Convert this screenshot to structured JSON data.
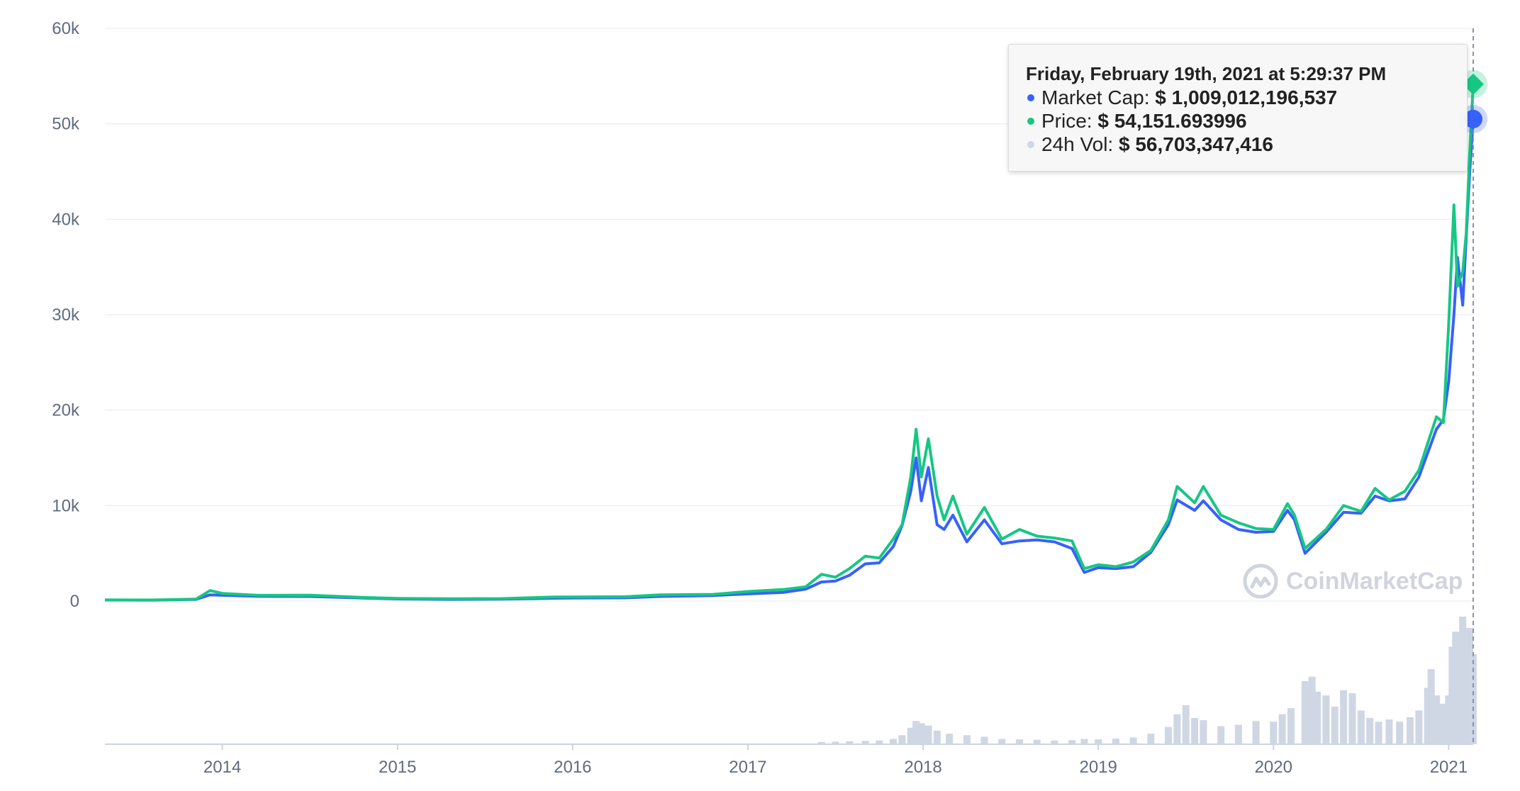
{
  "chart_data": {
    "type": "line",
    "title": "",
    "xlabel": "",
    "ylabel": "",
    "ylim": [
      0,
      60000
    ],
    "y_ticks": [
      "0",
      "10k",
      "20k",
      "30k",
      "40k",
      "50k",
      "60k"
    ],
    "x_ticks": [
      "2014",
      "2015",
      "2016",
      "2017",
      "2018",
      "2019",
      "2020",
      "2021"
    ],
    "grid": true,
    "x_start": 2013.33,
    "x_end": 2021.14,
    "series": [
      {
        "name": "Market Cap",
        "color": "#3861fb",
        "points": [
          [
            2013.33,
            110
          ],
          [
            2013.6,
            100
          ],
          [
            2013.85,
            180
          ],
          [
            2013.93,
            650
          ],
          [
            2014.0,
            600
          ],
          [
            2014.2,
            500
          ],
          [
            2014.5,
            480
          ],
          [
            2014.8,
            320
          ],
          [
            2015.0,
            220
          ],
          [
            2015.3,
            180
          ],
          [
            2015.6,
            210
          ],
          [
            2015.9,
            300
          ],
          [
            2016.0,
            320
          ],
          [
            2016.3,
            340
          ],
          [
            2016.5,
            480
          ],
          [
            2016.8,
            580
          ],
          [
            2017.0,
            750
          ],
          [
            2017.2,
            900
          ],
          [
            2017.33,
            1250
          ],
          [
            2017.42,
            2000
          ],
          [
            2017.5,
            2100
          ],
          [
            2017.58,
            2700
          ],
          [
            2017.67,
            3900
          ],
          [
            2017.75,
            4000
          ],
          [
            2017.83,
            5700
          ],
          [
            2017.88,
            7900
          ],
          [
            2017.93,
            11500
          ],
          [
            2017.96,
            15000
          ],
          [
            2017.99,
            10500
          ],
          [
            2018.03,
            14000
          ],
          [
            2018.08,
            8000
          ],
          [
            2018.12,
            7500
          ],
          [
            2018.17,
            9000
          ],
          [
            2018.25,
            6200
          ],
          [
            2018.35,
            8500
          ],
          [
            2018.45,
            6000
          ],
          [
            2018.55,
            6300
          ],
          [
            2018.65,
            6400
          ],
          [
            2018.75,
            6200
          ],
          [
            2018.85,
            5500
          ],
          [
            2018.92,
            3000
          ],
          [
            2019.0,
            3500
          ],
          [
            2019.1,
            3400
          ],
          [
            2019.2,
            3600
          ],
          [
            2019.3,
            5100
          ],
          [
            2019.4,
            8000
          ],
          [
            2019.45,
            10600
          ],
          [
            2019.55,
            9500
          ],
          [
            2019.6,
            10500
          ],
          [
            2019.7,
            8500
          ],
          [
            2019.8,
            7500
          ],
          [
            2019.9,
            7200
          ],
          [
            2020.0,
            7300
          ],
          [
            2020.08,
            9500
          ],
          [
            2020.12,
            8500
          ],
          [
            2020.18,
            5000
          ],
          [
            2020.3,
            7200
          ],
          [
            2020.4,
            9300
          ],
          [
            2020.5,
            9200
          ],
          [
            2020.58,
            11000
          ],
          [
            2020.66,
            10500
          ],
          [
            2020.75,
            10700
          ],
          [
            2020.83,
            13000
          ],
          [
            2020.88,
            15500
          ],
          [
            2020.93,
            18000
          ],
          [
            2020.97,
            19000
          ],
          [
            2021.0,
            23000
          ],
          [
            2021.03,
            30000
          ],
          [
            2021.05,
            36000
          ],
          [
            2021.08,
            31000
          ],
          [
            2021.1,
            38000
          ],
          [
            2021.12,
            45000
          ],
          [
            2021.14,
            50500
          ]
        ]
      },
      {
        "name": "Price",
        "color": "#16c784",
        "points": [
          [
            2013.33,
            120
          ],
          [
            2013.6,
            110
          ],
          [
            2013.85,
            200
          ],
          [
            2013.93,
            1100
          ],
          [
            2014.0,
            800
          ],
          [
            2014.2,
            600
          ],
          [
            2014.5,
            620
          ],
          [
            2014.8,
            380
          ],
          [
            2015.0,
            280
          ],
          [
            2015.3,
            240
          ],
          [
            2015.6,
            260
          ],
          [
            2015.9,
            420
          ],
          [
            2016.0,
            430
          ],
          [
            2016.3,
            450
          ],
          [
            2016.5,
            650
          ],
          [
            2016.8,
            700
          ],
          [
            2017.0,
            1000
          ],
          [
            2017.2,
            1200
          ],
          [
            2017.33,
            1500
          ],
          [
            2017.42,
            2800
          ],
          [
            2017.5,
            2500
          ],
          [
            2017.58,
            3400
          ],
          [
            2017.67,
            4700
          ],
          [
            2017.75,
            4500
          ],
          [
            2017.83,
            6500
          ],
          [
            2017.88,
            8000
          ],
          [
            2017.93,
            13000
          ],
          [
            2017.96,
            18000
          ],
          [
            2017.99,
            13000
          ],
          [
            2018.03,
            17000
          ],
          [
            2018.08,
            11000
          ],
          [
            2018.12,
            8500
          ],
          [
            2018.17,
            11000
          ],
          [
            2018.25,
            7000
          ],
          [
            2018.35,
            9800
          ],
          [
            2018.45,
            6500
          ],
          [
            2018.55,
            7500
          ],
          [
            2018.65,
            6800
          ],
          [
            2018.75,
            6600
          ],
          [
            2018.85,
            6300
          ],
          [
            2018.92,
            3400
          ],
          [
            2019.0,
            3800
          ],
          [
            2019.1,
            3600
          ],
          [
            2019.2,
            4100
          ],
          [
            2019.3,
            5300
          ],
          [
            2019.4,
            8500
          ],
          [
            2019.45,
            12000
          ],
          [
            2019.55,
            10300
          ],
          [
            2019.6,
            12000
          ],
          [
            2019.7,
            9000
          ],
          [
            2019.8,
            8200
          ],
          [
            2019.9,
            7600
          ],
          [
            2020.0,
            7500
          ],
          [
            2020.08,
            10200
          ],
          [
            2020.12,
            9000
          ],
          [
            2020.18,
            5500
          ],
          [
            2020.3,
            7500
          ],
          [
            2020.4,
            10000
          ],
          [
            2020.5,
            9400
          ],
          [
            2020.58,
            11800
          ],
          [
            2020.66,
            10600
          ],
          [
            2020.75,
            11500
          ],
          [
            2020.83,
            13700
          ],
          [
            2020.88,
            16500
          ],
          [
            2020.93,
            19300
          ],
          [
            2020.97,
            18700
          ],
          [
            2021.0,
            29000
          ],
          [
            2021.03,
            41500
          ],
          [
            2021.05,
            33000
          ],
          [
            2021.08,
            34500
          ],
          [
            2021.1,
            38500
          ],
          [
            2021.12,
            47000
          ],
          [
            2021.14,
            54152
          ]
        ]
      },
      {
        "name": "24h Vol",
        "type": "bar",
        "color": "#cfd6e4",
        "points": [
          [
            2017.42,
            300
          ],
          [
            2017.5,
            350
          ],
          [
            2017.58,
            400
          ],
          [
            2017.67,
            450
          ],
          [
            2017.75,
            500
          ],
          [
            2017.83,
            700
          ],
          [
            2017.88,
            1200
          ],
          [
            2017.93,
            2200
          ],
          [
            2017.96,
            3100
          ],
          [
            2017.99,
            2800
          ],
          [
            2018.03,
            2500
          ],
          [
            2018.08,
            1800
          ],
          [
            2018.15,
            1400
          ],
          [
            2018.25,
            1200
          ],
          [
            2018.35,
            1000
          ],
          [
            2018.45,
            700
          ],
          [
            2018.55,
            650
          ],
          [
            2018.65,
            600
          ],
          [
            2018.75,
            500
          ],
          [
            2018.85,
            550
          ],
          [
            2018.92,
            700
          ],
          [
            2019.0,
            650
          ],
          [
            2019.1,
            750
          ],
          [
            2019.2,
            900
          ],
          [
            2019.3,
            1400
          ],
          [
            2019.4,
            2300
          ],
          [
            2019.45,
            4000
          ],
          [
            2019.5,
            5200
          ],
          [
            2019.55,
            3500
          ],
          [
            2019.6,
            3200
          ],
          [
            2019.7,
            2400
          ],
          [
            2019.8,
            2600
          ],
          [
            2019.9,
            3100
          ],
          [
            2020.0,
            3000
          ],
          [
            2020.05,
            4000
          ],
          [
            2020.1,
            4800
          ],
          [
            2020.18,
            8400
          ],
          [
            2020.22,
            9000
          ],
          [
            2020.25,
            7000
          ],
          [
            2020.3,
            6500
          ],
          [
            2020.35,
            5000
          ],
          [
            2020.4,
            7200
          ],
          [
            2020.45,
            6800
          ],
          [
            2020.5,
            4500
          ],
          [
            2020.55,
            3500
          ],
          [
            2020.6,
            3000
          ],
          [
            2020.66,
            3300
          ],
          [
            2020.72,
            3000
          ],
          [
            2020.78,
            3600
          ],
          [
            2020.83,
            4500
          ],
          [
            2020.88,
            7500
          ],
          [
            2020.9,
            10000
          ],
          [
            2020.93,
            6500
          ],
          [
            2020.97,
            5400
          ],
          [
            2021.0,
            6500
          ],
          [
            2021.02,
            13000
          ],
          [
            2021.04,
            15000
          ],
          [
            2021.06,
            12000
          ],
          [
            2021.08,
            17000
          ],
          [
            2021.1,
            12500
          ],
          [
            2021.12,
            15500
          ],
          [
            2021.14,
            12000
          ]
        ]
      }
    ],
    "volume_ymax": 17000,
    "hover": {
      "x": 2021.14,
      "timestamp": "Friday, February 19th, 2021 at 5:29:37 PM",
      "rows": [
        {
          "label": "Market Cap:",
          "value": "$ 1,009,012,196,537",
          "color": "#3861fb"
        },
        {
          "label": "Price:",
          "value": "$ 54,151.693996",
          "color": "#16c784"
        },
        {
          "label": "24h Vol:",
          "value": "$ 56,703,347,416",
          "color": "#cfd6e4"
        }
      ]
    }
  },
  "watermark": {
    "text": "CoinMarketCap",
    "icon": "coinmarketcap-logo-icon"
  }
}
